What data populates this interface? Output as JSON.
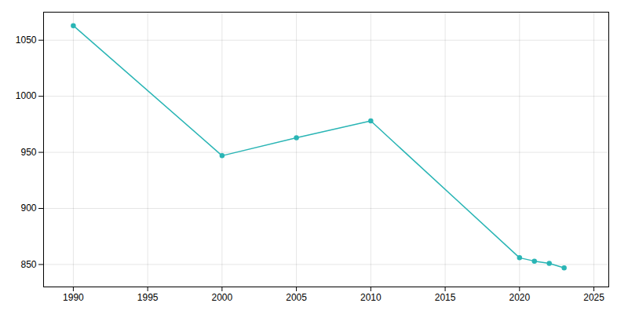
{
  "chart_data": {
    "type": "line",
    "x": [
      1990,
      2000,
      2005,
      2010,
      2020,
      2021,
      2022,
      2023
    ],
    "values": [
      1063,
      947,
      963,
      978,
      856,
      853,
      851,
      847
    ],
    "color": "#2ab5b5",
    "marker": "circle",
    "xlim": [
      1988,
      2026
    ],
    "ylim": [
      830,
      1075
    ],
    "xticks": [
      1990,
      1995,
      2000,
      2005,
      2010,
      2015,
      2020,
      2025
    ],
    "yticks": [
      850,
      900,
      950,
      1000,
      1050
    ],
    "grid": true
  }
}
